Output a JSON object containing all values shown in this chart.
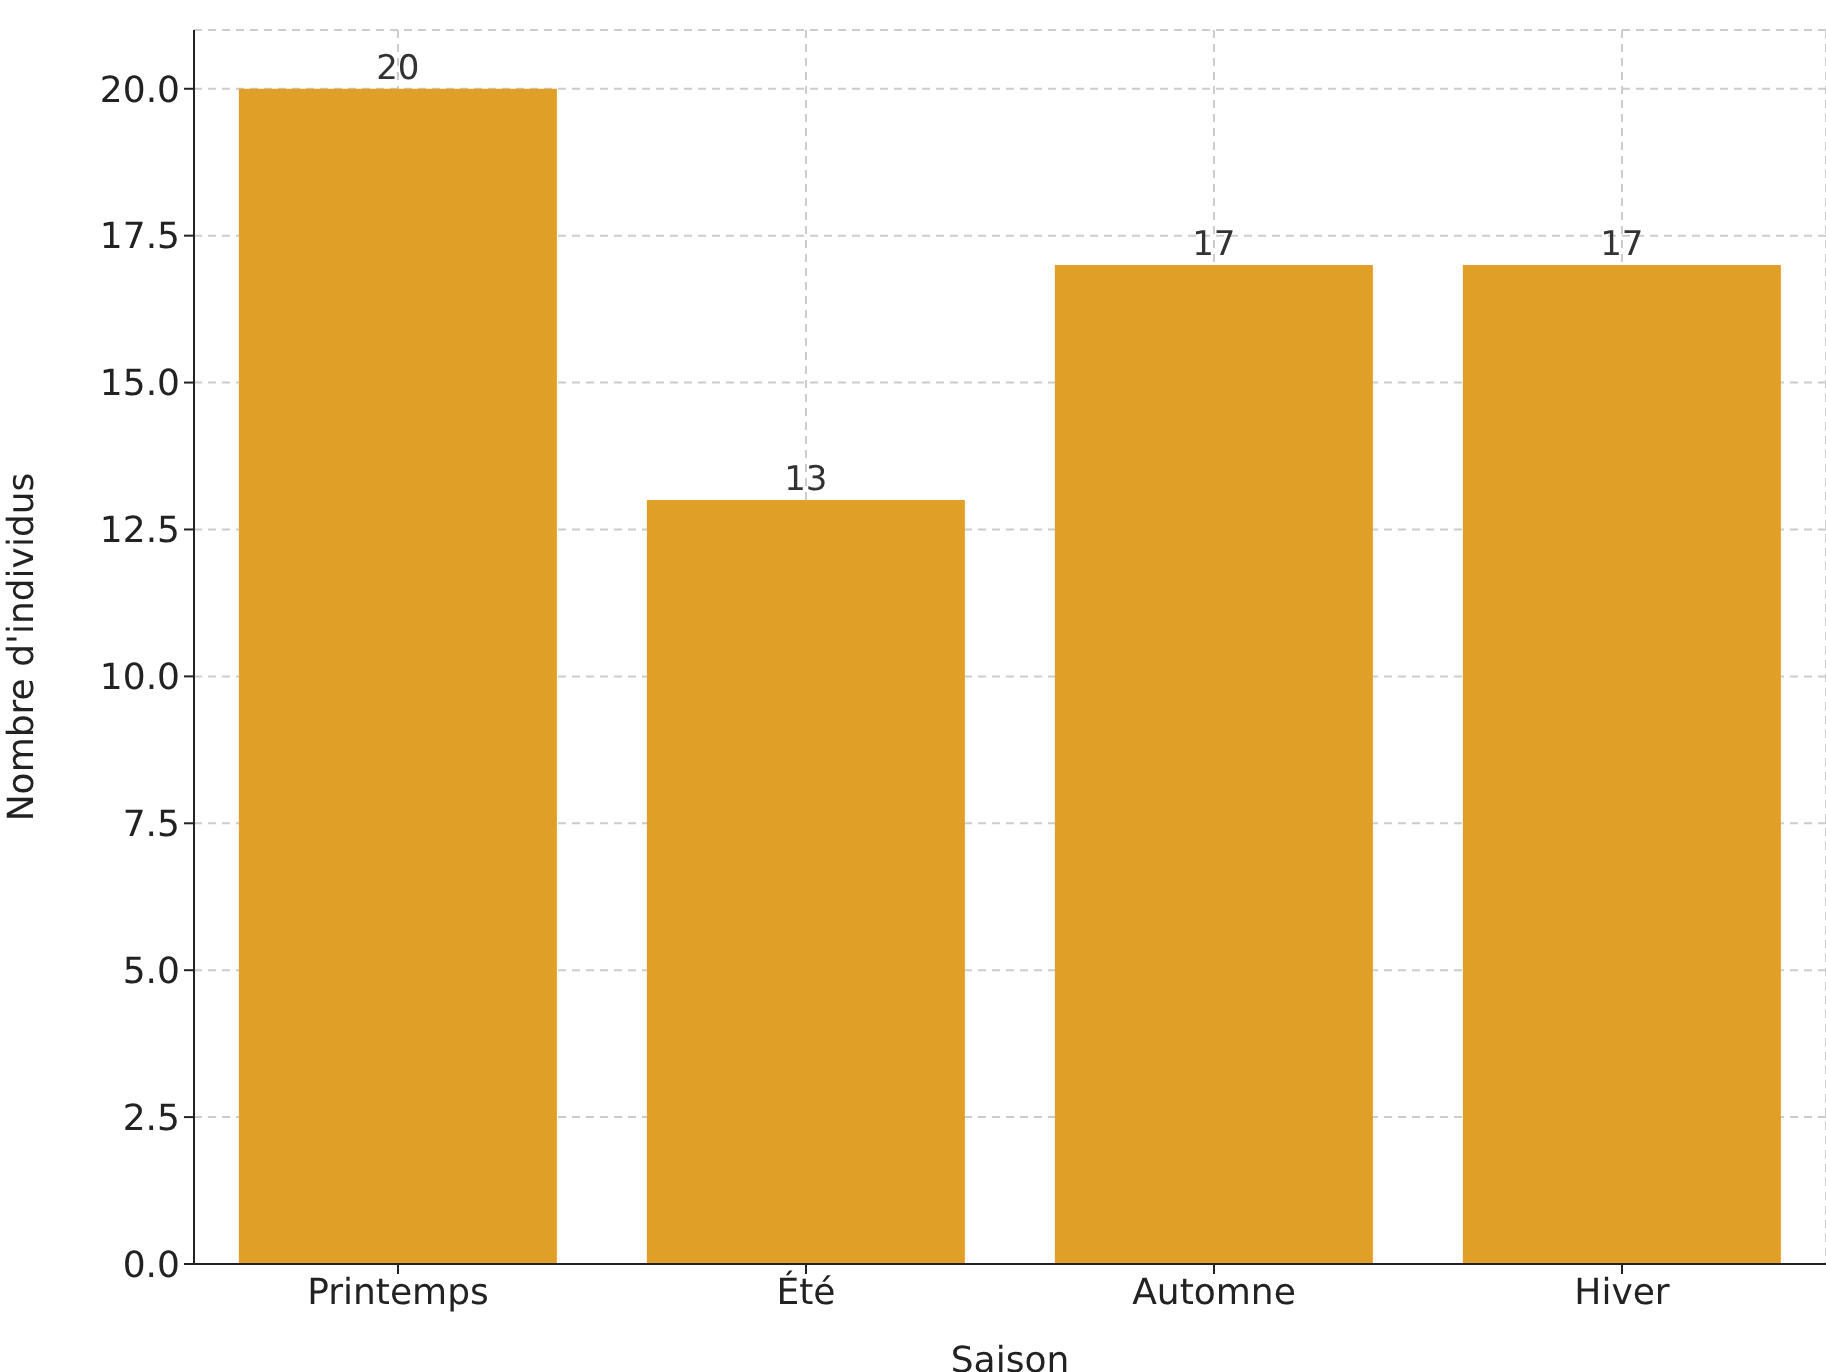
{
  "chart_data": {
    "type": "bar",
    "xlabel": "Saison",
    "ylabel": "Nombre d'individus",
    "categories": [
      "Printemps",
      "Été",
      "Automne",
      "Hiver"
    ],
    "values": [
      20,
      13,
      17,
      17
    ],
    "color": "#e09f26",
    "ylim": [
      0,
      21
    ],
    "yticks": [
      {
        "value": 0,
        "label": "0.0"
      },
      {
        "value": 2.5,
        "label": "2.5"
      },
      {
        "value": 5,
        "label": "5.0"
      },
      {
        "value": 7.5,
        "label": "7.5"
      },
      {
        "value": 10,
        "label": "10.0"
      },
      {
        "value": 12.5,
        "label": "12.5"
      },
      {
        "value": 15,
        "label": "15.0"
      },
      {
        "value": 17.5,
        "label": "17.5"
      },
      {
        "value": 20,
        "label": "20.0"
      }
    ],
    "grid": true,
    "data_labels": true
  }
}
